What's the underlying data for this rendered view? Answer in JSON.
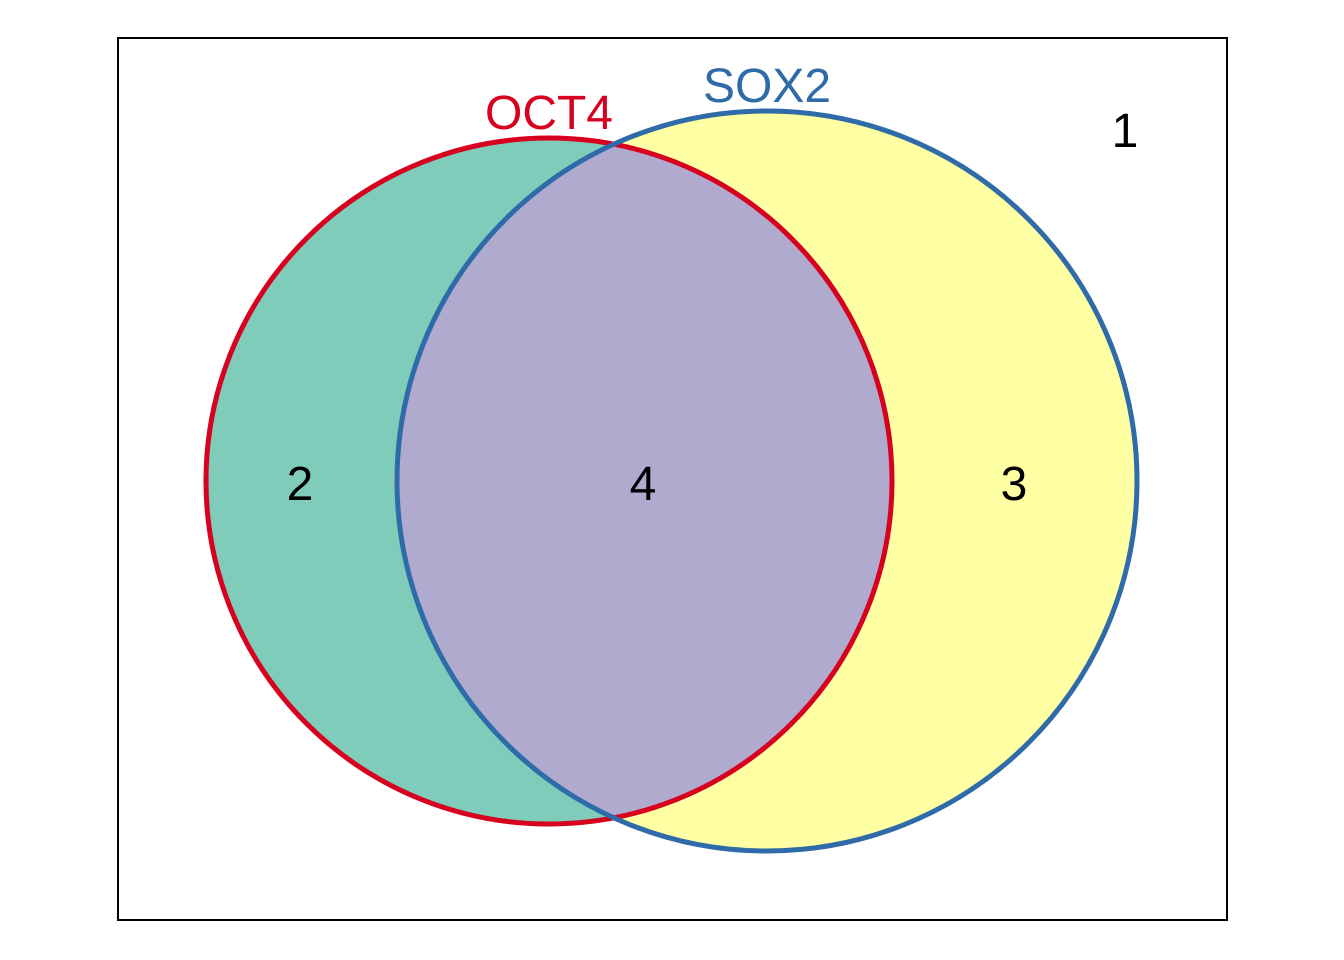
{
  "sets": [
    {
      "id": "oct4",
      "label": "OCT4",
      "outline_color": "#D7001E"
    },
    {
      "id": "sox2",
      "label": "SOX2",
      "outline_color": "#2E6BA8"
    }
  ],
  "regions": {
    "outside": {
      "count": "1"
    },
    "oct4_only": {
      "count": "2",
      "fill": "#7FCCBA"
    },
    "sox2_only": {
      "count": "3",
      "fill": "#FFFFA3"
    },
    "both": {
      "count": "4",
      "fill": "#B0AACF"
    }
  }
}
